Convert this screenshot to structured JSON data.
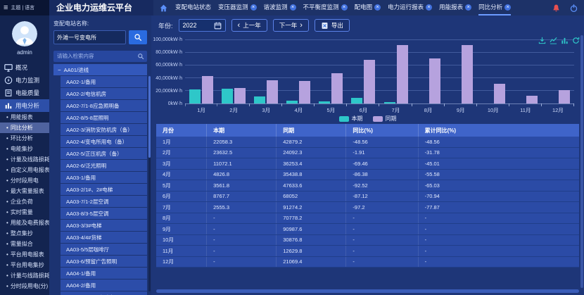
{
  "header": {
    "theme_lang": "主题 | 语言",
    "brand": "企业电力运维云平台",
    "tabs": [
      {
        "label": "变配电站状态",
        "closable": false,
        "active": false
      },
      {
        "label": "变压器监测",
        "closable": true,
        "active": false
      },
      {
        "label": "谐波监测",
        "closable": true,
        "active": false
      },
      {
        "label": "不平衡度监测",
        "closable": true,
        "active": false
      },
      {
        "label": "配电图",
        "closable": true,
        "active": false
      },
      {
        "label": "电力运行报表",
        "closable": true,
        "active": false
      },
      {
        "label": "用能报表",
        "closable": true,
        "active": false
      },
      {
        "label": "同比分析",
        "closable": true,
        "active": true
      }
    ]
  },
  "icons": {
    "hamburger": "≡",
    "close": "×",
    "collapse": "−",
    "prev_chevron": "‹",
    "next_chevron": "›",
    "bullet": "•"
  },
  "sidebar": {
    "username": "admin",
    "menu": [
      {
        "label": "概况",
        "icon": "overview-icon",
        "active": false
      },
      {
        "label": "电力监测",
        "icon": "power-monitor-icon",
        "active": false
      },
      {
        "label": "电能质量",
        "icon": "power-quality-icon",
        "active": false
      },
      {
        "label": "用电分析",
        "icon": "usage-analysis-icon",
        "active": true
      }
    ],
    "submenu": [
      "用能报表",
      "同比分析",
      "环比分析",
      "电能集抄",
      "计量及线路损耗",
      "自定义用电报表",
      "分时段用电",
      "最大需量报表",
      "企业负荷",
      "实时需量",
      "用能及电费报表",
      "整点集抄",
      "需量拟合",
      "平台用电报表",
      "平台用电集抄",
      "计量与线路损耗",
      "分时段用电(分)"
    ],
    "active_submenu": "同比分析"
  },
  "station_panel": {
    "label": "变配电站名称:",
    "station_value": "外滩一号变电所",
    "search_placeholder": "请输入检索内容",
    "tree": [
      {
        "label": "AA01/进线",
        "parent": true
      },
      {
        "label": "AA02-1/备用"
      },
      {
        "label": "AA02-2/电信机房"
      },
      {
        "label": "AA02-7/1-8应急照明备"
      },
      {
        "label": "AA02-8/5-8层照明"
      },
      {
        "label": "AA02-3/消防安防机房（备）"
      },
      {
        "label": "AA02-4/变电所用电（备）"
      },
      {
        "label": "AA02-5/正压机房（备）"
      },
      {
        "label": "AA02-6/泛光照明"
      },
      {
        "label": "AA03-1/备用"
      },
      {
        "label": "AA03-2/1#、2#电梯"
      },
      {
        "label": "AA03-7/1-2层空调"
      },
      {
        "label": "AA03-8/3-5层空调"
      },
      {
        "label": "AA03-3/3#电梯"
      },
      {
        "label": "AA03-4/4#货梯"
      },
      {
        "label": "AA03-5/5层咖啡厅"
      },
      {
        "label": "AA03-6/预留广告照明"
      },
      {
        "label": "AA04-1/备用"
      },
      {
        "label": "AA04-2/备用"
      },
      {
        "label": "AA04-7/6层厨房动力"
      }
    ]
  },
  "toolbar": {
    "year_label": "年份:",
    "year_value": "2022",
    "prev_year": "上一年",
    "next_year": "下一年",
    "export_label": "导出"
  },
  "chart_data": {
    "type": "bar",
    "title": "",
    "unit": "kW·h",
    "categories": [
      "1月",
      "2月",
      "3月",
      "4月",
      "5月",
      "6月",
      "7月",
      "8月",
      "9月",
      "10月",
      "11月",
      "12月"
    ],
    "series": [
      {
        "name": "本期",
        "color": "#2ec7c9",
        "values": [
          22058.3,
          23632.5,
          11072.1,
          4826.8,
          3561.8,
          8767.7,
          2555.3,
          null,
          null,
          null,
          null,
          null
        ]
      },
      {
        "name": "同期",
        "color": "#b6a2de",
        "values": [
          42879.2,
          24092.3,
          36253.4,
          35438.8,
          47633.6,
          68052,
          91274.2,
          70778.2,
          90987.6,
          30876.8,
          12629.8,
          21069.4
        ]
      }
    ],
    "ylim": [
      0,
      100000
    ],
    "ytick_step": 20000,
    "ytick_labels": [
      "0kW·h",
      "20,000kW·h",
      "40,000kW·h",
      "60,000kW·h",
      "80,000kW·h",
      "100,000kW·h"
    ],
    "grid": true,
    "legend_position": "bottom"
  },
  "table": {
    "columns": [
      "月份",
      "本期",
      "同期",
      "同比(%)",
      "累计同比(%)"
    ],
    "rows": [
      [
        "1月",
        "22058.3",
        "42879.2",
        "-48.56",
        "-48.56"
      ],
      [
        "2月",
        "23632.5",
        "24092.3",
        "-1.91",
        "-31.78"
      ],
      [
        "3月",
        "11072.1",
        "36253.4",
        "-69.46",
        "-45.01"
      ],
      [
        "4月",
        "4826.8",
        "35438.8",
        "-86.38",
        "-55.58"
      ],
      [
        "5月",
        "3561.8",
        "47633.6",
        "-92.52",
        "-65.03"
      ],
      [
        "6月",
        "8767.7",
        "68052",
        "-87.12",
        "-70.94"
      ],
      [
        "7月",
        "2555.3",
        "91274.2",
        "-97.2",
        "-77.87"
      ],
      [
        "8月",
        "-",
        "70778.2",
        "-",
        "-"
      ],
      [
        "9月",
        "-",
        "90987.6",
        "-",
        "-"
      ],
      [
        "10月",
        "-",
        "30876.8",
        "-",
        "-"
      ],
      [
        "11月",
        "-",
        "12629.8",
        "-",
        "-"
      ],
      [
        "12月",
        "-",
        "21069.4",
        "-",
        "-"
      ]
    ]
  }
}
